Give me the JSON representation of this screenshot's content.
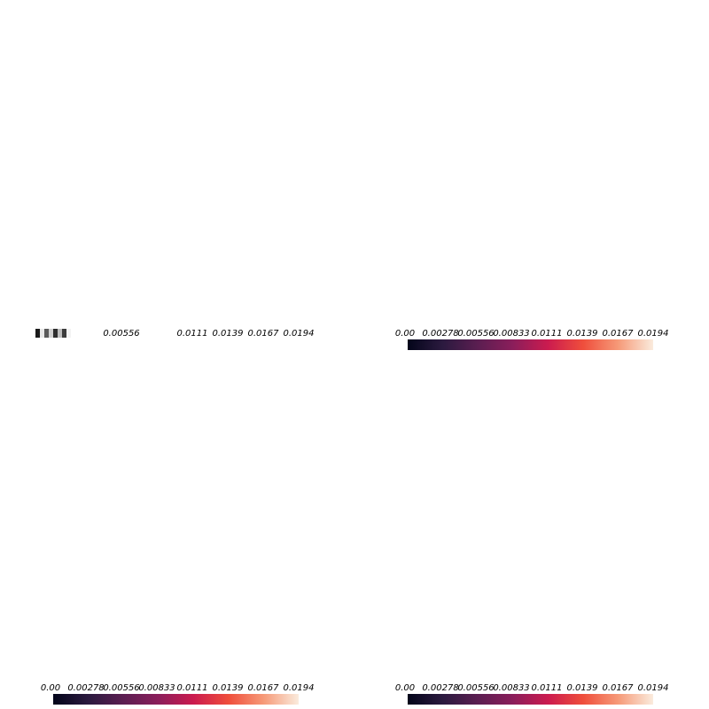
{
  "chart_data": [
    {
      "type": "heatmap",
      "panel": "top-left",
      "colormap": "rocket",
      "vmin": 0.0,
      "vmax": 0.0194,
      "tick_labels": [
        "0.00556",
        "0.0111",
        "0.0139",
        "0.0167",
        "0.0194"
      ],
      "tick_values": [
        0.00556,
        0.0111,
        0.0139,
        0.0167,
        0.0194
      ],
      "legend_swatches": [
        "#1a1a1a",
        "#e8e8e8",
        "#5a5a5a",
        "#d0d0d0",
        "#2e2e2e",
        "#bdbdbd",
        "#3c3c3c",
        "#f3f3f3"
      ],
      "colorbar_drawn": false
    },
    {
      "type": "heatmap",
      "panel": "top-right",
      "colormap": "rocket",
      "vmin": 0.0,
      "vmax": 0.0194,
      "tick_labels": [
        "0.00",
        "0.00278",
        "0.00556",
        "0.00833",
        "0.0111",
        "0.0139",
        "0.0167",
        "0.0194"
      ],
      "tick_values": [
        0.0,
        0.00278,
        0.00556,
        0.00833,
        0.0111,
        0.0139,
        0.0167,
        0.0194
      ],
      "colorbar_drawn": true
    },
    {
      "type": "heatmap",
      "panel": "bottom-left",
      "colormap": "rocket",
      "vmin": 0.0,
      "vmax": 0.0194,
      "tick_labels": [
        "0.00",
        "0.00278",
        "0.00556",
        "0.00833",
        "0.0111",
        "0.0139",
        "0.0167",
        "0.0194"
      ],
      "tick_values": [
        0.0,
        0.00278,
        0.00556,
        0.00833,
        0.0111,
        0.0139,
        0.0167,
        0.0194
      ],
      "colorbar_drawn": true
    },
    {
      "type": "heatmap",
      "panel": "bottom-right",
      "colormap": "rocket",
      "vmin": 0.0,
      "vmax": 0.0194,
      "tick_labels": [
        "0.00",
        "0.00278",
        "0.00556",
        "0.00833",
        "0.0111",
        "0.0139",
        "0.0167",
        "0.0194"
      ],
      "tick_values": [
        0.0,
        0.00278,
        0.00556,
        0.00833,
        0.0111,
        0.0139,
        0.0167,
        0.0194
      ],
      "colorbar_drawn": true
    }
  ],
  "colormap_stops": [
    "#03051a",
    "#2b1a3f",
    "#5b1e51",
    "#8b1e5b",
    "#cb1b4f",
    "#ef4e3c",
    "#f69a78",
    "#faebdd"
  ]
}
